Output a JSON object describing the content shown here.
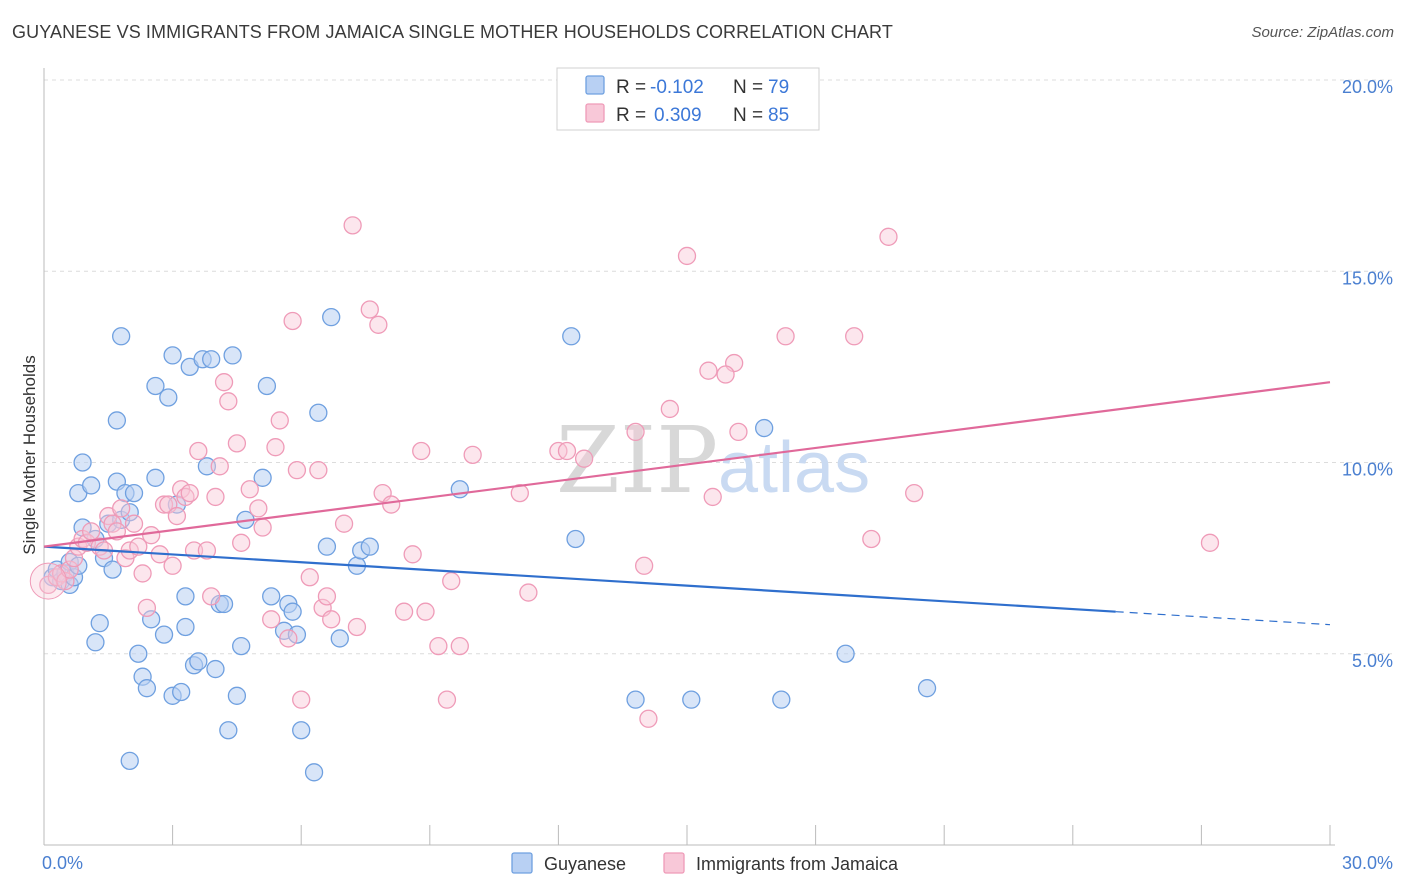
{
  "title": "GUYANESE VS IMMIGRANTS FROM JAMAICA SINGLE MOTHER HOUSEHOLDS CORRELATION CHART",
  "source": "Source: ZipAtlas.com",
  "watermark": {
    "zip": "ZIP",
    "atlas": "atlas"
  },
  "colors": {
    "guyanese": "#6fa0e0",
    "guyanese_fill": "#b8d0f3",
    "guyanese_line": "#2f6fcd",
    "jamaica": "#ef9bb8",
    "jamaica_fill": "#f8c8d8",
    "jamaica_line": "#e0699a",
    "grid": "#dcdcdc",
    "tick_text": "#4a7fd0"
  },
  "legend": {
    "rows": [
      {
        "r_label": "R = ",
        "r_value": "-0.102",
        "n_label": "N = ",
        "n_value": "79"
      },
      {
        "r_label": "R = ",
        "r_value": "0.309",
        "n_label": "N = ",
        "n_value": "85"
      }
    ]
  },
  "chart_data": {
    "type": "scatter",
    "title": "GUYANESE VS IMMIGRANTS FROM JAMAICA SINGLE MOTHER HOUSEHOLDS CORRELATION CHART",
    "xlabel": "",
    "ylabel": "Single Mother Households",
    "xlim": [
      0,
      30
    ],
    "ylim": [
      0,
      20
    ],
    "x_tick_labels": [
      "0.0%",
      "30.0%"
    ],
    "y_ticks": [
      5,
      10,
      15,
      20
    ],
    "y_tick_labels": [
      "5.0%",
      "10.0%",
      "15.0%",
      "20.0%"
    ],
    "grid": "horizontal dashed",
    "legend_placement": "top-center",
    "series": [
      {
        "name": "Guyanese",
        "r": -0.102,
        "n": 79,
        "trend": {
          "x": [
            0,
            25
          ],
          "y": [
            7.8,
            6.1
          ],
          "dashed_extension": [
            25,
            30
          ]
        },
        "points": [
          [
            0.2,
            7.0
          ],
          [
            0.3,
            7.2
          ],
          [
            0.4,
            6.9
          ],
          [
            0.5,
            7.1
          ],
          [
            0.6,
            7.4
          ],
          [
            0.6,
            6.8
          ],
          [
            0.7,
            7.0
          ],
          [
            0.8,
            7.3
          ],
          [
            0.9,
            8.3
          ],
          [
            0.8,
            9.2
          ],
          [
            0.9,
            10.0
          ],
          [
            1.1,
            9.4
          ],
          [
            1.2,
            8.0
          ],
          [
            1.3,
            5.8
          ],
          [
            1.2,
            5.3
          ],
          [
            1.4,
            7.5
          ],
          [
            1.5,
            8.4
          ],
          [
            1.6,
            7.2
          ],
          [
            1.7,
            9.5
          ],
          [
            1.8,
            8.5
          ],
          [
            1.7,
            11.1
          ],
          [
            1.8,
            13.3
          ],
          [
            1.9,
            9.2
          ],
          [
            2.0,
            8.7
          ],
          [
            2.1,
            9.2
          ],
          [
            2.2,
            5.0
          ],
          [
            2.3,
            4.4
          ],
          [
            2.4,
            4.1
          ],
          [
            2.5,
            5.9
          ],
          [
            2.6,
            9.6
          ],
          [
            2.6,
            12.0
          ],
          [
            2.8,
            5.5
          ],
          [
            2.9,
            11.7
          ],
          [
            3.0,
            12.8
          ],
          [
            3.0,
            3.9
          ],
          [
            3.1,
            8.9
          ],
          [
            3.2,
            4.0
          ],
          [
            3.3,
            6.5
          ],
          [
            3.3,
            5.7
          ],
          [
            3.4,
            12.5
          ],
          [
            3.5,
            4.7
          ],
          [
            3.6,
            4.8
          ],
          [
            3.7,
            12.7
          ],
          [
            3.8,
            9.9
          ],
          [
            3.9,
            12.7
          ],
          [
            4.0,
            4.6
          ],
          [
            4.1,
            6.3
          ],
          [
            4.2,
            6.3
          ],
          [
            4.3,
            3.0
          ],
          [
            4.4,
            12.8
          ],
          [
            4.5,
            3.9
          ],
          [
            4.6,
            5.2
          ],
          [
            4.7,
            8.5
          ],
          [
            5.1,
            9.6
          ],
          [
            5.2,
            12.0
          ],
          [
            5.3,
            6.5
          ],
          [
            5.6,
            5.6
          ],
          [
            5.7,
            6.3
          ],
          [
            5.8,
            6.1
          ],
          [
            5.9,
            5.5
          ],
          [
            6.0,
            3.0
          ],
          [
            6.3,
            1.9
          ],
          [
            6.4,
            11.3
          ],
          [
            6.6,
            7.8
          ],
          [
            6.7,
            13.8
          ],
          [
            6.9,
            5.4
          ],
          [
            7.3,
            7.3
          ],
          [
            7.4,
            7.7
          ],
          [
            7.6,
            7.8
          ],
          [
            2.0,
            2.2
          ],
          [
            9.7,
            9.3
          ],
          [
            12.3,
            13.3
          ],
          [
            12.4,
            8.0
          ],
          [
            13.8,
            3.8
          ],
          [
            15.1,
            3.8
          ],
          [
            16.8,
            10.9
          ],
          [
            17.2,
            3.8
          ],
          [
            18.7,
            5.0
          ],
          [
            20.6,
            4.1
          ]
        ]
      },
      {
        "name": "Immigrants from Jamaica",
        "r": 0.309,
        "n": 85,
        "trend": {
          "x": [
            0,
            30
          ],
          "y": [
            7.8,
            12.1
          ]
        },
        "points": [
          [
            0.1,
            6.8
          ],
          [
            0.3,
            7.0
          ],
          [
            0.4,
            7.1
          ],
          [
            0.5,
            6.9
          ],
          [
            0.6,
            7.2
          ],
          [
            0.7,
            7.5
          ],
          [
            0.8,
            7.8
          ],
          [
            0.9,
            8.0
          ],
          [
            1.0,
            7.9
          ],
          [
            1.1,
            8.2
          ],
          [
            1.3,
            7.8
          ],
          [
            1.4,
            7.7
          ],
          [
            1.5,
            8.6
          ],
          [
            1.6,
            8.4
          ],
          [
            1.7,
            8.2
          ],
          [
            1.8,
            8.8
          ],
          [
            1.9,
            7.5
          ],
          [
            2.0,
            7.7
          ],
          [
            2.1,
            8.4
          ],
          [
            2.2,
            7.8
          ],
          [
            2.3,
            7.1
          ],
          [
            2.4,
            6.2
          ],
          [
            2.5,
            8.1
          ],
          [
            2.7,
            7.6
          ],
          [
            2.8,
            8.9
          ],
          [
            2.9,
            8.9
          ],
          [
            3.0,
            7.3
          ],
          [
            3.1,
            8.6
          ],
          [
            3.2,
            9.3
          ],
          [
            3.3,
            9.1
          ],
          [
            3.4,
            9.2
          ],
          [
            3.5,
            7.7
          ],
          [
            3.6,
            10.3
          ],
          [
            3.8,
            7.7
          ],
          [
            3.9,
            6.5
          ],
          [
            4.0,
            9.1
          ],
          [
            4.1,
            9.9
          ],
          [
            4.2,
            12.1
          ],
          [
            4.3,
            11.6
          ],
          [
            4.5,
            10.5
          ],
          [
            4.6,
            7.9
          ],
          [
            4.8,
            9.3
          ],
          [
            5.0,
            8.8
          ],
          [
            5.1,
            8.3
          ],
          [
            5.3,
            5.9
          ],
          [
            5.4,
            10.4
          ],
          [
            5.5,
            11.1
          ],
          [
            5.7,
            5.4
          ],
          [
            5.8,
            13.7
          ],
          [
            5.9,
            9.8
          ],
          [
            6.0,
            3.8
          ],
          [
            6.2,
            7.0
          ],
          [
            6.4,
            9.8
          ],
          [
            6.5,
            6.2
          ],
          [
            6.6,
            6.5
          ],
          [
            6.7,
            5.9
          ],
          [
            7.0,
            8.4
          ],
          [
            7.2,
            16.2
          ],
          [
            7.3,
            5.7
          ],
          [
            7.6,
            14.0
          ],
          [
            7.8,
            13.6
          ],
          [
            7.9,
            9.2
          ],
          [
            8.1,
            8.9
          ],
          [
            8.4,
            6.1
          ],
          [
            8.6,
            7.6
          ],
          [
            8.8,
            10.3
          ],
          [
            8.9,
            6.1
          ],
          [
            9.2,
            5.2
          ],
          [
            9.4,
            3.8
          ],
          [
            9.5,
            6.9
          ],
          [
            9.7,
            5.2
          ],
          [
            10.0,
            10.2
          ],
          [
            11.1,
            9.2
          ],
          [
            11.3,
            6.6
          ],
          [
            12.0,
            10.3
          ],
          [
            12.2,
            10.3
          ],
          [
            12.6,
            10.1
          ],
          [
            13.8,
            10.8
          ],
          [
            14.0,
            7.3
          ],
          [
            14.6,
            11.4
          ],
          [
            15.0,
            15.4
          ],
          [
            15.5,
            12.4
          ],
          [
            15.6,
            9.1
          ],
          [
            16.1,
            12.6
          ],
          [
            17.3,
            13.3
          ]
        ]
      }
    ],
    "extra_jamaica_points": [
      [
        16.2,
        10.8
      ],
      [
        18.9,
        13.3
      ],
      [
        19.3,
        8.0
      ],
      [
        19.7,
        15.9
      ],
      [
        20.3,
        9.2
      ],
      [
        27.2,
        7.9
      ],
      [
        14.1,
        3.3
      ],
      [
        15.9,
        12.3
      ]
    ]
  }
}
